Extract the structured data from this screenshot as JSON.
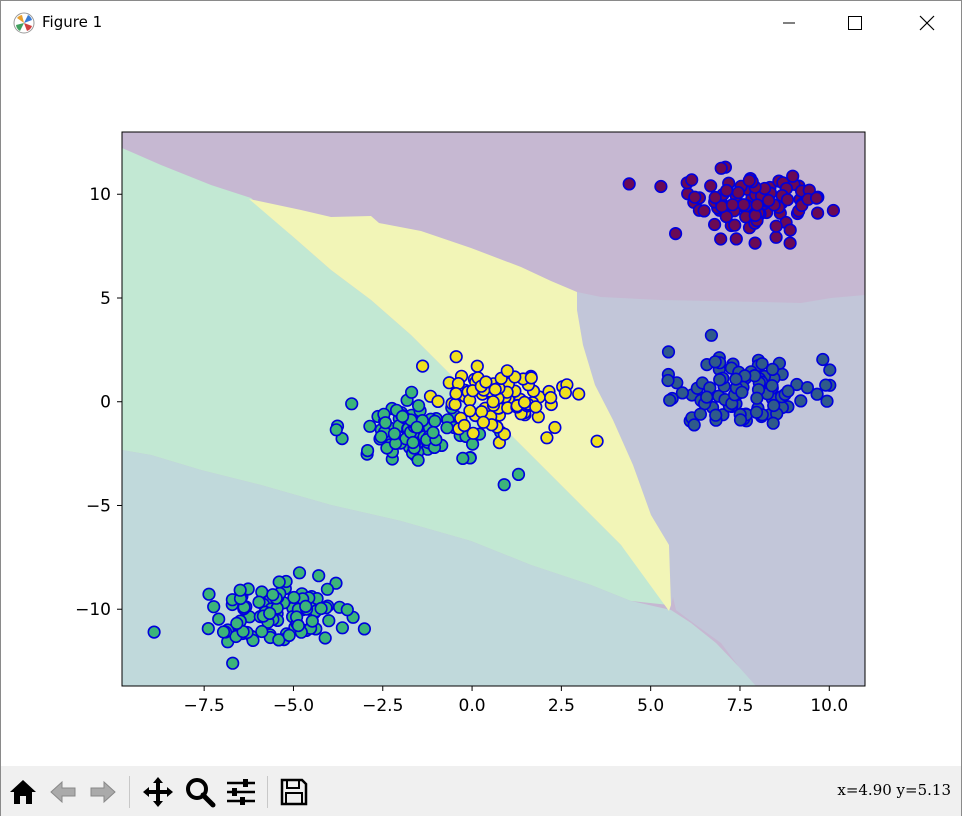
{
  "window": {
    "title": "Figure 1",
    "minimize_icon": "minimize-icon",
    "maximize_icon": "maximize-icon",
    "close_icon": "close-icon"
  },
  "toolbar": {
    "buttons": [
      {
        "name": "home-button",
        "icon": "home-icon"
      },
      {
        "name": "back-button",
        "icon": "arrow-left-icon"
      },
      {
        "name": "forward-button",
        "icon": "arrow-right-icon"
      },
      {
        "name": "pan-button",
        "icon": "move-icon"
      },
      {
        "name": "zoom-button",
        "icon": "zoom-icon"
      },
      {
        "name": "configure-subplots-button",
        "icon": "sliders-icon"
      },
      {
        "name": "save-button",
        "icon": "save-icon"
      }
    ],
    "coordinates": "x=4.90 y=5.13"
  },
  "chart_data": {
    "type": "scatter",
    "title": "",
    "xlabel": "",
    "ylabel": "",
    "xlim": [
      -9.8,
      11.0
    ],
    "ylim": [
      -13.7,
      13.0
    ],
    "xticks": [
      -7.5,
      -5.0,
      -2.5,
      0.0,
      2.5,
      5.0,
      7.5,
      10.0
    ],
    "xtick_labels": [
      "−7.5",
      "−5.0",
      "−2.5",
      "0.0",
      "2.5",
      "5.0",
      "7.5",
      "10.0"
    ],
    "yticks": [
      -10,
      -5,
      0,
      5,
      10
    ],
    "ytick_labels": [
      "−10",
      "−5",
      "0",
      "5",
      "10"
    ],
    "grid": false,
    "legend": "none",
    "region_colors": {
      "purple": "#c6b8d2",
      "slate": "#c2c6d9",
      "teal": "#c0d9db",
      "green": "#c2e8d3",
      "yellow": "#f2f5b7"
    },
    "marker_edge": "#0000dd",
    "clusters": [
      {
        "label_color": "#6a0a55",
        "center": [
          7.7,
          9.6
        ],
        "spread": [
          1.05,
          0.85
        ],
        "count": 100
      },
      {
        "label_color": "#2f5a8a",
        "center": [
          7.6,
          0.5
        ],
        "spread": [
          1.05,
          0.95
        ],
        "count": 100
      },
      {
        "label_color": "#3cb47a",
        "center": [
          -5.2,
          -10.2
        ],
        "spread": [
          0.95,
          0.85
        ],
        "count": 100
      },
      {
        "label_color": "#3cb47a",
        "center": [
          -1.5,
          -1.5
        ],
        "spread": [
          1.0,
          0.85
        ],
        "count": 100
      },
      {
        "label_color": "#f0e020",
        "center": [
          0.8,
          0.1
        ],
        "spread": [
          0.95,
          0.9
        ],
        "count": 100
      }
    ],
    "outliers": [
      {
        "x": -8.9,
        "y": -11.1,
        "color": "#3cb47a"
      },
      {
        "x": -6.7,
        "y": -12.6,
        "color": "#3cb47a"
      },
      {
        "x": 3.5,
        "y": -1.9,
        "color": "#f0e020"
      },
      {
        "x": 4.4,
        "y": 10.5,
        "color": "#6a0a55"
      },
      {
        "x": 0.9,
        "y": -4.0,
        "color": "#3cb47a"
      },
      {
        "x": 1.3,
        "y": -3.5,
        "color": "#3cb47a"
      },
      {
        "x": 6.7,
        "y": 3.2,
        "color": "#2f5a8a"
      },
      {
        "x": 9.9,
        "y": 0.8,
        "color": "#2f5a8a"
      },
      {
        "x": 5.5,
        "y": 2.4,
        "color": "#2f5a8a"
      }
    ]
  }
}
